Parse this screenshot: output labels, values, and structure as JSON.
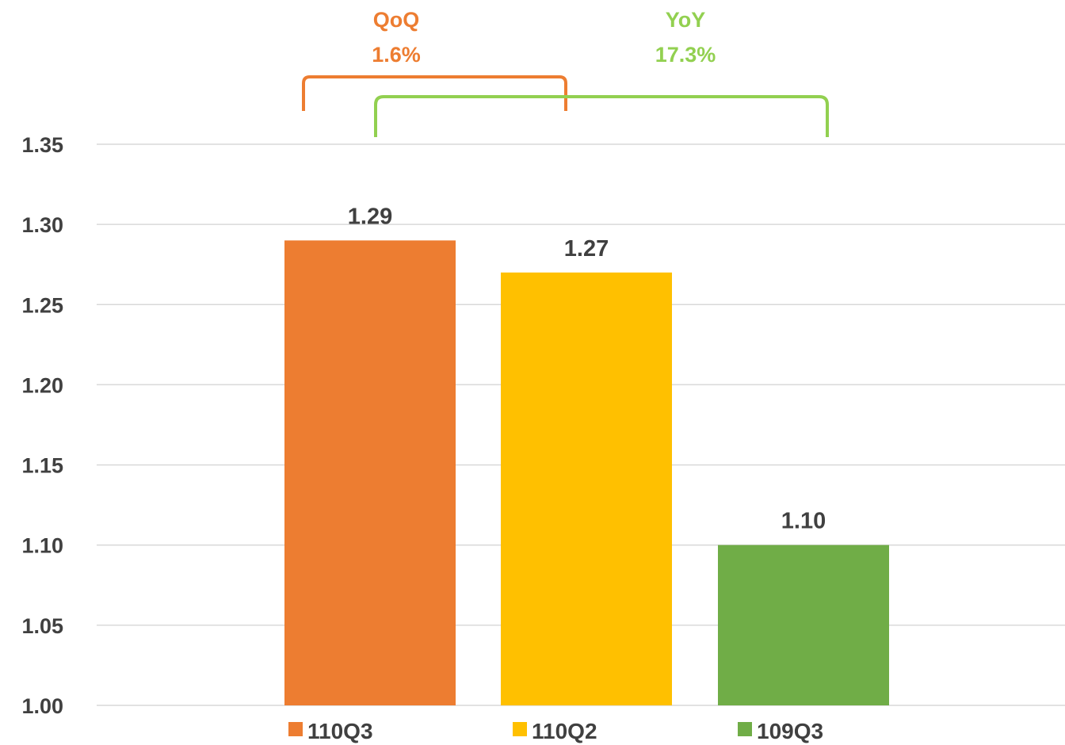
{
  "chart_data": {
    "type": "bar",
    "categories": [
      "110Q3",
      "110Q2",
      "109Q3"
    ],
    "values": [
      1.29,
      1.27,
      1.1
    ],
    "value_labels": [
      "1.29",
      "1.27",
      "1.10"
    ],
    "colors": [
      "#ED7D31",
      "#FFC000",
      "#70AD47"
    ],
    "ylim": [
      1.0,
      1.35
    ],
    "yticks": [
      "1.00",
      "1.05",
      "1.10",
      "1.15",
      "1.20",
      "1.25",
      "1.30",
      "1.35"
    ],
    "grid": true,
    "legend_position": "bottom",
    "legend": [
      "110Q3",
      "110Q2",
      "109Q3"
    ],
    "annotations": [
      {
        "label": "QoQ",
        "value": "1.6%",
        "color": "#ED7D31",
        "from": "110Q3",
        "to": "110Q2"
      },
      {
        "label": "YoY",
        "value": "17.3%",
        "color": "#92D050",
        "from": "110Q2",
        "to": "109Q3"
      }
    ]
  }
}
